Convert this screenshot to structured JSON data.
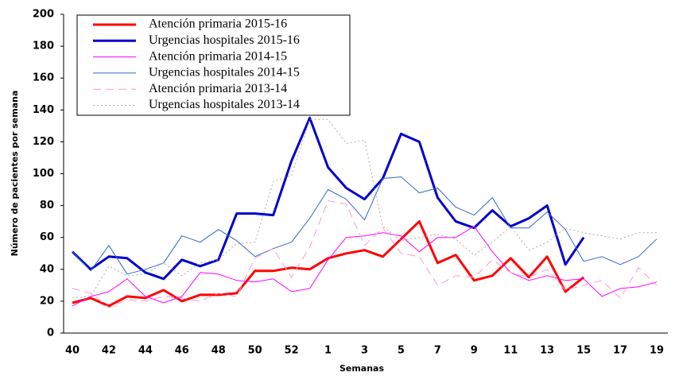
{
  "chart_data": {
    "type": "line",
    "x_label": "Semanas",
    "y_label": "Número de pacientes por semana",
    "categories": [
      "40",
      null,
      "42",
      null,
      "44",
      null,
      "46",
      null,
      "48",
      null,
      "50",
      null,
      "52",
      null,
      "1",
      null,
      "3",
      null,
      "5",
      null,
      "7",
      null,
      "9",
      null,
      "11",
      null,
      "13",
      null,
      "15",
      null,
      "17",
      null,
      "19"
    ],
    "ylim": [
      0,
      200
    ],
    "yticks": [
      0,
      20,
      40,
      60,
      80,
      100,
      120,
      140,
      160,
      180,
      200
    ],
    "grid": false,
    "legend": "top-left",
    "series": [
      {
        "name": "Atención primaria 2015-16",
        "color": "#ff0000",
        "width": 3,
        "style": "solid",
        "values": [
          19,
          22,
          17,
          23,
          22,
          27,
          20,
          24,
          24,
          25,
          39,
          39,
          41,
          40,
          47,
          50,
          52,
          48,
          59,
          70,
          44,
          49,
          33,
          36,
          47,
          35,
          48,
          26,
          35,
          null,
          null,
          null,
          null
        ]
      },
      {
        "name": "Urgencias hospitales 2015-16",
        "color": "#0000cc",
        "width": 3,
        "style": "solid",
        "values": [
          51,
          40,
          48,
          47,
          38,
          34,
          46,
          42,
          46,
          75,
          75,
          74,
          108,
          135,
          104,
          91,
          84,
          97,
          125,
          120,
          85,
          70,
          66,
          77,
          67,
          72,
          80,
          43,
          60,
          null,
          null,
          null,
          null
        ]
      },
      {
        "name": "Atención primaria 2014-15",
        "color": "#ff00ff",
        "width": 1,
        "style": "solid",
        "values": [
          17,
          23,
          26,
          34,
          23,
          19,
          23,
          38,
          37,
          33,
          32,
          34,
          26,
          28,
          46,
          60,
          61,
          63,
          61,
          51,
          60,
          60,
          67,
          51,
          38,
          33,
          36,
          33,
          34,
          23,
          28,
          29,
          32
        ]
      },
      {
        "name": "Urgencias hospitales 2014-15",
        "color": "#3366cc",
        "width": 1,
        "style": "solid",
        "values": [
          51,
          39,
          55,
          37,
          40,
          44,
          61,
          57,
          65,
          58,
          48,
          53,
          57,
          72,
          90,
          84,
          71,
          97,
          98,
          88,
          91,
          79,
          74,
          85,
          66,
          66,
          76,
          65,
          45,
          48,
          43,
          48,
          59
        ]
      },
      {
        "name": "Atención primaria 2013-14",
        "color": "#ff99cc",
        "width": 1,
        "style": "dashed",
        "values": [
          28,
          25,
          16,
          21,
          20,
          23,
          22,
          20,
          25,
          23,
          47,
          53,
          35,
          54,
          83,
          81,
          55,
          66,
          50,
          48,
          30,
          36,
          35,
          46,
          38,
          35,
          40,
          27,
          30,
          33,
          22,
          41,
          30
        ]
      },
      {
        "name": "Urgencias hospitales 2013-14",
        "color": "#aaaaaa",
        "width": 1,
        "style": "dotted",
        "values": [
          22,
          23,
          42,
          36,
          37,
          44,
          36,
          44,
          46,
          56,
          57,
          95,
          99,
          134,
          134,
          119,
          121,
          67,
          58,
          60,
          62,
          59,
          49,
          57,
          67,
          52,
          57,
          66,
          63,
          61,
          59,
          63,
          63
        ]
      }
    ]
  }
}
